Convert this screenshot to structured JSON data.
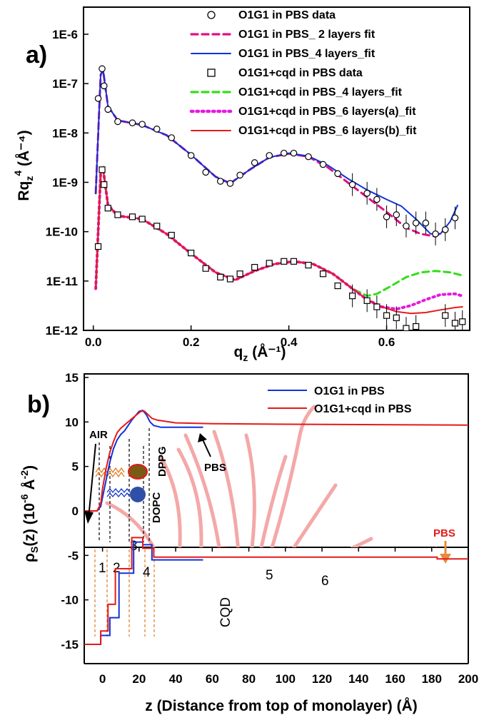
{
  "chart_data": [
    {
      "panel_label": "a)",
      "type": "scatter",
      "xlabel": "q",
      "xlabel_sub": "z",
      "xlabel_unit": "(Å⁻¹)",
      "ylabel": "Rq",
      "ylabel_sub": "z",
      "ylabel_sup": "4",
      "ylabel_unit": "(Å⁻⁴)",
      "xlim": [
        -0.02,
        0.77
      ],
      "ylim": [
        1e-12,
        1e-06
      ],
      "yscale": "log",
      "xticks": [
        0.0,
        0.2,
        0.4,
        0.6
      ],
      "xtick_labels": [
        "0.0",
        "0.2",
        "0.4",
        "0.6"
      ],
      "yticks": [
        1e-12,
        1e-11,
        1e-10,
        1e-09,
        1e-08,
        1e-07,
        1e-06
      ],
      "ytick_labels": [
        "1E-12",
        "1E-11",
        "1E-10",
        "1E-9",
        "1E-8",
        "1E-7",
        "1E-6"
      ],
      "legend_position": "top-right",
      "series": [
        {
          "name": "O1G1 in  PBS data",
          "kind": "markers",
          "marker": "circle",
          "color": "#000000",
          "x": [
            0.01,
            0.018,
            0.022,
            0.03,
            0.05,
            0.08,
            0.1,
            0.13,
            0.16,
            0.2,
            0.23,
            0.26,
            0.28,
            0.3,
            0.33,
            0.36,
            0.39,
            0.41,
            0.44,
            0.47,
            0.5,
            0.53,
            0.56,
            0.58,
            0.6,
            0.62,
            0.64,
            0.66,
            0.68,
            0.7,
            0.72,
            0.74
          ],
          "y": [
            5e-08,
            2e-07,
            9e-08,
            3e-08,
            1.7e-08,
            1.6e-08,
            1.5e-08,
            1.2e-08,
            8e-09,
            3.5e-09,
            1.6e-09,
            1.05e-09,
            9.5e-10,
            1.4e-09,
            2.5e-09,
            3.5e-09,
            3.9e-09,
            3.9e-09,
            3.3e-09,
            2.3e-09,
            1.5e-09,
            9e-10,
            6e-10,
            4.5e-10,
            2e-10,
            2.2e-10,
            1.3e-10,
            1.5e-10,
            1.5e-10,
            9e-11,
            1.1e-10,
            1.9e-10
          ]
        },
        {
          "name": "O1G1 in PBS_ 2 layers fit",
          "kind": "line",
          "dash": "dash",
          "color": "#e0117f",
          "x": [
            0.005,
            0.015,
            0.02,
            0.03,
            0.05,
            0.1,
            0.15,
            0.2,
            0.25,
            0.28,
            0.32,
            0.36,
            0.4,
            0.44,
            0.48,
            0.52,
            0.56,
            0.6,
            0.64,
            0.67,
            0.7,
            0.72
          ],
          "y": [
            6e-10,
            1.5e-07,
            1.9e-07,
            3.5e-08,
            1.8e-08,
            1.45e-08,
            9e-09,
            3.6e-09,
            1.3e-09,
            9.5e-10,
            1.8e-09,
            3.2e-09,
            3.8e-09,
            3.3e-09,
            2e-09,
            1e-09,
            5e-10,
            2.5e-10,
            1.2e-10,
            9e-11,
            8e-11,
            1.1e-10
          ]
        },
        {
          "name": "O1G1 in PBS_4 layers_fit",
          "kind": "line",
          "dash": "solid",
          "color": "#1032d8",
          "x": [
            0.005,
            0.015,
            0.02,
            0.03,
            0.05,
            0.1,
            0.15,
            0.2,
            0.25,
            0.28,
            0.32,
            0.36,
            0.4,
            0.44,
            0.48,
            0.52,
            0.56,
            0.6,
            0.63,
            0.66,
            0.69,
            0.71,
            0.73,
            0.745
          ],
          "y": [
            6e-10,
            1.5e-07,
            1.9e-07,
            3.5e-08,
            1.8e-08,
            1.45e-08,
            9e-09,
            3.6e-09,
            1.3e-09,
            9.5e-10,
            1.8e-09,
            3.2e-09,
            3.9e-09,
            3.4e-09,
            2.2e-09,
            1.2e-09,
            7e-10,
            4.5e-10,
            3.3e-10,
            1.8e-10,
            9e-11,
            9e-11,
            1.6e-10,
            3.4e-10
          ]
        },
        {
          "name": "O1G1+cqd in PBS data",
          "kind": "markers",
          "marker": "square",
          "color": "#000000",
          "x": [
            0.01,
            0.018,
            0.022,
            0.03,
            0.05,
            0.08,
            0.1,
            0.13,
            0.16,
            0.2,
            0.23,
            0.26,
            0.28,
            0.3,
            0.33,
            0.36,
            0.39,
            0.41,
            0.44,
            0.47,
            0.5,
            0.53,
            0.56,
            0.58,
            0.6,
            0.62,
            0.64,
            0.66,
            0.72,
            0.74,
            0.755
          ],
          "y": [
            5e-11,
            1.8e-09,
            9e-10,
            3e-10,
            2.2e-10,
            2e-10,
            1.8e-10,
            1.3e-10,
            8.5e-11,
            3.7e-11,
            1.8e-11,
            1.2e-11,
            1.1e-11,
            1.4e-11,
            1.9e-11,
            2.3e-11,
            2.5e-11,
            2.5e-11,
            2.1e-11,
            1.4e-11,
            8e-12,
            5e-12,
            4e-12,
            3e-12,
            2e-12,
            1.8e-12,
            1.1e-12,
            1.2e-12,
            2e-12,
            1.4e-12,
            1.5e-12
          ]
        },
        {
          "name": "O1G1+cqd in PBS_4 layers_fit",
          "kind": "line",
          "dash": "dash",
          "color": "#33dd1a",
          "x": [
            0.005,
            0.015,
            0.02,
            0.03,
            0.05,
            0.1,
            0.15,
            0.2,
            0.25,
            0.29,
            0.33,
            0.37,
            0.41,
            0.45,
            0.49,
            0.53,
            0.56,
            0.58,
            0.61,
            0.64,
            0.67,
            0.7,
            0.73,
            0.755
          ],
          "y": [
            7e-12,
            1.5e-09,
            1.9e-09,
            3.5e-10,
            2.1e-10,
            1.8e-10,
            9e-11,
            3.6e-11,
            1.5e-11,
            1.05e-11,
            1.6e-11,
            2.2e-11,
            2.5e-11,
            2.2e-11,
            1.4e-11,
            7e-12,
            5e-12,
            5.5e-12,
            8e-12,
            1.2e-11,
            1.5e-11,
            1.6e-11,
            1.5e-11,
            1.3e-11
          ]
        },
        {
          "name": "O1G1+cqd in PBS_6 layers(a)_fit",
          "kind": "line",
          "dash": "dot",
          "color": "#e21be0",
          "x": [
            0.005,
            0.015,
            0.02,
            0.03,
            0.05,
            0.1,
            0.15,
            0.2,
            0.25,
            0.29,
            0.33,
            0.37,
            0.41,
            0.45,
            0.49,
            0.53,
            0.56,
            0.59,
            0.62,
            0.65,
            0.68,
            0.71,
            0.74,
            0.755
          ],
          "y": [
            7e-12,
            1.5e-09,
            1.9e-09,
            3.5e-10,
            2.1e-10,
            1.8e-10,
            9e-11,
            3.6e-11,
            1.5e-11,
            1.05e-11,
            1.6e-11,
            2.2e-11,
            2.5e-11,
            2.2e-11,
            1.4e-11,
            7e-12,
            4.2e-12,
            3e-12,
            2.7e-12,
            3.2e-12,
            4.2e-12,
            5.3e-12,
            5.5e-12,
            5e-12
          ]
        },
        {
          "name": "O1G1+cqd in PBS_6 layers(b)_fit",
          "kind": "line",
          "dash": "solid",
          "color": "#e41a1a",
          "x": [
            0.005,
            0.015,
            0.02,
            0.03,
            0.05,
            0.1,
            0.15,
            0.2,
            0.25,
            0.29,
            0.33,
            0.37,
            0.41,
            0.45,
            0.49,
            0.53,
            0.56,
            0.59,
            0.62,
            0.65,
            0.68,
            0.71,
            0.74,
            0.755
          ],
          "y": [
            7e-12,
            1.5e-09,
            1.9e-09,
            3.5e-10,
            2.1e-10,
            1.8e-10,
            9e-11,
            3.6e-11,
            1.5e-11,
            1.05e-11,
            1.6e-11,
            2.2e-11,
            2.5e-11,
            2.2e-11,
            1.4e-11,
            7e-12,
            4.2e-12,
            3e-12,
            2.4e-12,
            2.2e-12,
            2.3e-12,
            2.6e-12,
            2.9e-12,
            3e-12
          ]
        }
      ]
    },
    {
      "panel_label": "b)",
      "type": "line",
      "xlabel": "z (Distance from top of monolayer) (Å)",
      "ylabel": "ρ",
      "ylabel_sub": "S",
      "ylabel_mid": "(z) (10",
      "ylabel_sup1": "-6",
      "ylabel_mid2": " Å",
      "ylabel_sup2": "-2",
      "ylabel_end": ")",
      "xlim": [
        -10,
        200
      ],
      "ylim": [
        -17,
        15
      ],
      "xticks": [
        0,
        20,
        40,
        60,
        80,
        100,
        120,
        140,
        160,
        180,
        200
      ],
      "xtick_labels": [
        "0",
        "20",
        "40",
        "60",
        "80",
        "100",
        "120",
        "140",
        "160",
        "180",
        "200"
      ],
      "yticks": [
        -15,
        -10,
        -5,
        0,
        5,
        10,
        15
      ],
      "ytick_labels": [
        "-15",
        "-10",
        "-5",
        "0",
        "5",
        "10",
        "15"
      ],
      "legend_position": "top-right",
      "series": [
        {
          "name": "O1G1 in PBS",
          "kind": "line",
          "color": "#1032d8",
          "x": [
            -10,
            -3,
            -1,
            0,
            2,
            4,
            6,
            8,
            10,
            12,
            14,
            16,
            18,
            20,
            22,
            24,
            26,
            28,
            32,
            40,
            55
          ],
          "y": [
            0,
            0,
            0.5,
            1.5,
            3.5,
            5.5,
            7,
            8,
            8.6,
            9,
            9.6,
            10.2,
            10.7,
            11.2,
            11.3,
            10.8,
            10,
            9.6,
            9.4,
            9.4,
            9.4
          ]
        },
        {
          "name": "O1G1+cqd in PBS",
          "kind": "line",
          "color": "#e41a1a",
          "x": [
            -10,
            -3,
            -1,
            0,
            2,
            4,
            6,
            8,
            10,
            14,
            18,
            21,
            23,
            25,
            27,
            30,
            40,
            60,
            100,
            150,
            200
          ],
          "y": [
            0,
            0,
            0.8,
            2.5,
            4.8,
            6.6,
            7.8,
            8.8,
            9.3,
            10,
            10.7,
            11.2,
            11.2,
            10.8,
            10.4,
            10.2,
            9.9,
            9.8,
            9.75,
            9.7,
            9.65
          ]
        },
        {
          "name": "O1G1 in PBS layer profile",
          "kind": "step",
          "color": "#1032d8",
          "x": [
            -10,
            -1,
            -1,
            4,
            4,
            9,
            9,
            17,
            17,
            22,
            22,
            27,
            27,
            55
          ],
          "y": [
            -15,
            -15,
            -14,
            -14,
            -12,
            -12,
            -7,
            -7,
            -3.5,
            -3.5,
            -3.8,
            -3.8,
            -5.5,
            -5.5
          ]
        },
        {
          "name": "O1G1+cqd in PBS layer profile",
          "kind": "step",
          "color": "#e41a1a",
          "x": [
            -10,
            -1,
            -1,
            3,
            3,
            7,
            7,
            16,
            16,
            22,
            22,
            28,
            28,
            183,
            183,
            200
          ],
          "y": [
            -15,
            -15,
            -13.5,
            -13.5,
            -10.5,
            -10.5,
            -6.5,
            -6.5,
            -3,
            -3,
            -4.2,
            -4.2,
            -5.2,
            -5.2,
            -5.4,
            -5.4
          ]
        }
      ],
      "annotations": {
        "air": "AIR",
        "pbs_top": "PBS",
        "pbs_bottom": "PBS",
        "dppg": "DPPG",
        "dopc": "DOPC",
        "cqd": "CQD",
        "layers": [
          "1",
          "2",
          "3",
          "4",
          "5",
          "6"
        ]
      }
    }
  ]
}
